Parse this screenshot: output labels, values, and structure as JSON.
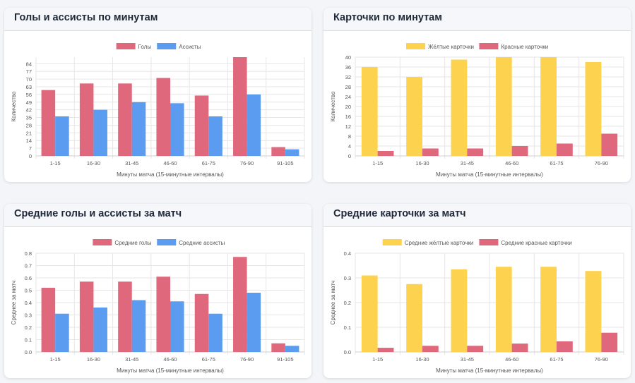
{
  "cards": [
    {
      "title": "Голы и ассисты по минутам",
      "chart_data": {
        "type": "bar",
        "categories": [
          "1-15",
          "16-30",
          "31-45",
          "46-60",
          "61-75",
          "76-90",
          "91-105"
        ],
        "series": [
          {
            "name": "Голы",
            "values": [
              60,
              66,
              66,
              71,
              55,
              90,
              8
            ],
            "color": "#e0687c"
          },
          {
            "name": "Ассисты",
            "values": [
              36,
              42,
              49,
              48,
              36,
              56,
              6
            ],
            "color": "#5b9cf0"
          }
        ],
        "yticks": [
          0,
          7,
          14,
          21,
          28,
          35,
          42,
          49,
          56,
          63,
          70,
          77,
          84
        ],
        "ylim": [
          0,
          90
        ],
        "xlabel": "Минуты матча (15-минутные интервалы)",
        "ylabel": "Количество",
        "legend": "top"
      }
    },
    {
      "title": "Карточки по минутам",
      "chart_data": {
        "type": "bar",
        "categories": [
          "1-15",
          "16-30",
          "31-45",
          "46-60",
          "61-75",
          "76-90"
        ],
        "series": [
          {
            "name": "Жёлтые карточки",
            "values": [
              36,
              32,
              39,
              40,
              40,
              38
            ],
            "color": "#fdd24f"
          },
          {
            "name": "Красные карточки",
            "values": [
              2,
              3,
              3,
              4,
              5,
              9
            ],
            "color": "#e0687c"
          }
        ],
        "yticks": [
          0,
          4,
          8,
          12,
          16,
          20,
          24,
          28,
          32,
          36,
          40
        ],
        "ylim": [
          0,
          40
        ],
        "xlabel": "Минуты матча (15-минутные интервалы)",
        "ylabel": "Количество",
        "legend": "top"
      }
    },
    {
      "title": "Средние голы и ассисты за матч",
      "chart_data": {
        "type": "bar",
        "categories": [
          "1-15",
          "16-30",
          "31-45",
          "46-60",
          "61-75",
          "76-90",
          "91-105"
        ],
        "series": [
          {
            "name": "Средние голы",
            "values": [
              0.52,
              0.57,
              0.57,
              0.61,
              0.47,
              0.77,
              0.07
            ],
            "color": "#e0687c"
          },
          {
            "name": "Средние ассисты",
            "values": [
              0.31,
              0.36,
              0.42,
              0.41,
              0.31,
              0.48,
              0.05
            ],
            "color": "#5b9cf0"
          }
        ],
        "yticks": [
          "0.0",
          "0.1",
          "0.2",
          "0.3",
          "0.4",
          "0.5",
          "0.6",
          "0.7",
          "0.8"
        ],
        "ylim": [
          0,
          0.8
        ],
        "xlabel": "Минуты матча (15-минутные интервалы)",
        "ylabel": "Среднее за матч",
        "legend": "top"
      }
    },
    {
      "title": "Средние карточки за матч",
      "chart_data": {
        "type": "bar",
        "categories": [
          "1-15",
          "16-30",
          "31-45",
          "46-60",
          "61-75",
          "76-90"
        ],
        "series": [
          {
            "name": "Средние жёлтые карточки",
            "values": [
              0.31,
              0.275,
              0.335,
              0.345,
              0.345,
              0.328
            ],
            "color": "#fdd24f"
          },
          {
            "name": "Средние красные карточки",
            "values": [
              0.017,
              0.025,
              0.025,
              0.034,
              0.043,
              0.078
            ],
            "color": "#e0687c"
          }
        ],
        "yticks": [
          "0.0",
          "0.1",
          "0.2",
          "0.3",
          "0.4"
        ],
        "ylim": [
          0,
          0.4
        ],
        "xlabel": "Минуты матча (15-минутные интервалы)",
        "ylabel": "Среднее за матч",
        "legend": "top"
      }
    }
  ]
}
